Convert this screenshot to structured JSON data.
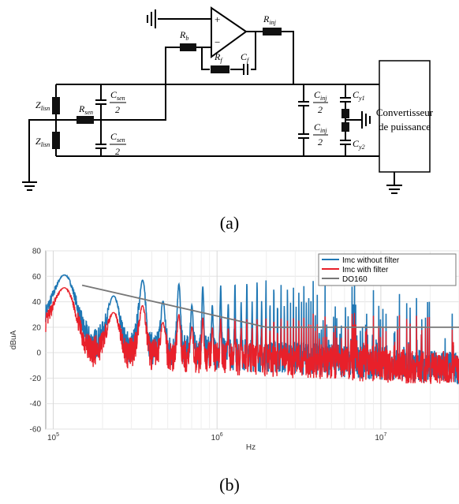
{
  "figure_a": {
    "caption": "(a)",
    "labels": {
      "z_top": {
        "main": "Z",
        "sub": "lisn"
      },
      "z_bot": {
        "main": "Z",
        "sub": "lisn"
      },
      "r_sen": {
        "main": "R",
        "sub": "sen"
      },
      "c_sen_top": {
        "num_main": "C",
        "num_sub": "sen",
        "den": "2"
      },
      "c_sen_bot": {
        "num_main": "C",
        "num_sub": "sen",
        "den": "2"
      },
      "r_b": {
        "main": "R",
        "sub": "b"
      },
      "r_f": {
        "main": "R",
        "sub": "f"
      },
      "c_f": {
        "main": "C",
        "sub": "f"
      },
      "r_inj": {
        "main": "R",
        "sub": "inj"
      },
      "c_inj_top": {
        "num_main": "C",
        "num_sub": "inj",
        "den": "2"
      },
      "c_inj_bot": {
        "num_main": "C",
        "num_sub": "inj",
        "den": "2"
      },
      "c_y1": {
        "main": "C",
        "sub": "y1"
      },
      "c_y2": {
        "main": "C",
        "sub": "y2"
      },
      "opamp_plus": "+",
      "opamp_minus": "−"
    },
    "converter": {
      "line1": "Convertisseur",
      "line2": "de puissance"
    }
  },
  "figure_b": {
    "caption": "(b)",
    "chart_data": {
      "type": "line",
      "xlabel": "Hz",
      "ylabel": "dBuA",
      "x_scale": "log",
      "xlim": [
        90000,
        30000000
      ],
      "ylim": [
        -60,
        80
      ],
      "y_ticks": [
        "80",
        "60",
        "40",
        "20",
        "0",
        "-20",
        "-40",
        "-60"
      ],
      "x_ticks": [
        {
          "base": "10",
          "exp": "5"
        },
        {
          "base": "10",
          "exp": "6"
        },
        {
          "base": "10",
          "exp": "7"
        }
      ],
      "grid": true,
      "legend_position": "top-right",
      "series": [
        {
          "name": "Imc without filter",
          "color": "#1f77b4",
          "peaks_x": [
            118000,
            230000,
            350000,
            470000,
            580000,
            700000,
            930000,
            1400000,
            2000000,
            5000000,
            10000000,
            15000000,
            20000000,
            30000000
          ],
          "peaks_y": [
            61,
            62,
            57,
            56,
            54,
            52,
            52,
            55,
            57,
            56,
            52,
            45,
            40,
            40
          ]
        },
        {
          "name": "Imc with filter",
          "color": "#e8202a",
          "peaks_x": [
            118000,
            230000,
            350000,
            470000,
            580000,
            700000,
            930000,
            1400000,
            2000000,
            5000000,
            10000000,
            15000000,
            20000000,
            30000000
          ],
          "peaks_y": [
            51,
            44,
            37,
            33,
            30,
            28,
            27,
            27,
            27,
            32,
            32,
            30,
            28,
            27
          ]
        },
        {
          "name": "DO160",
          "color": "#777777",
          "x": [
            150000,
            2000000,
            30000000
          ],
          "y": [
            53,
            20,
            20
          ]
        }
      ]
    }
  }
}
